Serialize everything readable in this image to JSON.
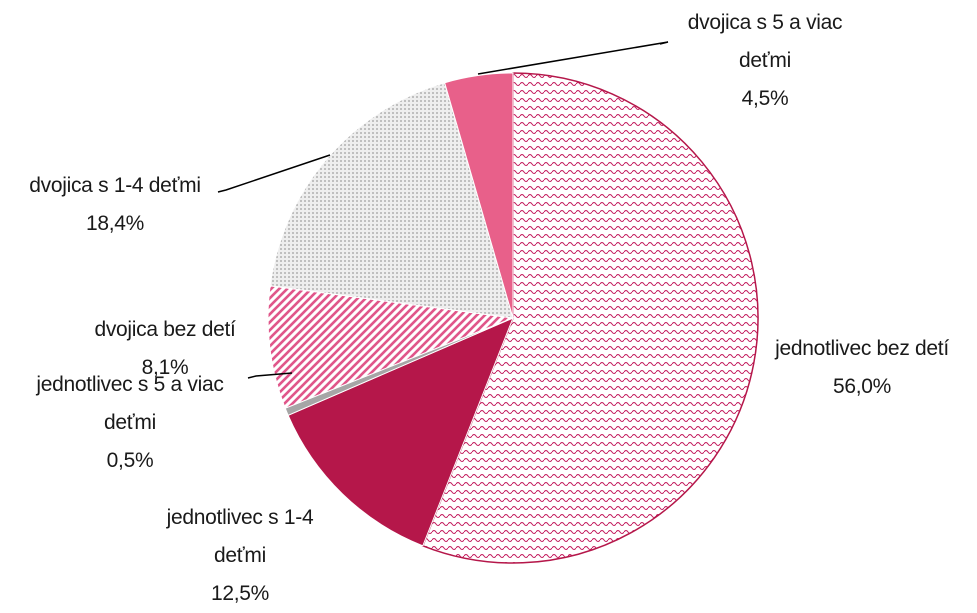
{
  "chart_data": {
    "type": "pie",
    "categories": [
      "jednotlivec bez detí",
      "jednotlivec s 1-4 deťmi",
      "jednotlivec s 5 a viac deťmi",
      "dvojica bez detí",
      "dvojica s 1-4 deťmi",
      "dvojica s 5 a viac deťmi"
    ],
    "values": [
      56.0,
      12.5,
      0.5,
      8.1,
      18.4,
      4.5
    ],
    "value_labels": [
      "56,0%",
      "12,5%",
      "0,5%",
      "8,1%",
      "18,4%",
      "4,5%"
    ],
    "colors": [
      "#c2185b",
      "#b5174a",
      "#a6a6a6",
      "#e0568a",
      "#bfbfbf",
      "#e8608a"
    ]
  }
}
